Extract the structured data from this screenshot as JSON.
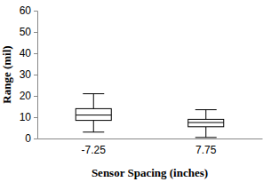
{
  "chart_data": {
    "type": "box",
    "x_label": "Sensor Spacing (inches)",
    "y_label": "Range (mil)",
    "categories": [
      "-7.25",
      "7.75"
    ],
    "min": [
      3,
      0.5
    ],
    "q1": [
      8.5,
      5.5
    ],
    "median": [
      11,
      7.5
    ],
    "q3": [
      14,
      9
    ],
    "max": [
      21,
      13.5
    ],
    "color": "#000000",
    "ylim": [
      0,
      60
    ],
    "yticks": [
      0,
      10,
      20,
      30,
      40,
      50,
      60
    ],
    "grid": false
  }
}
